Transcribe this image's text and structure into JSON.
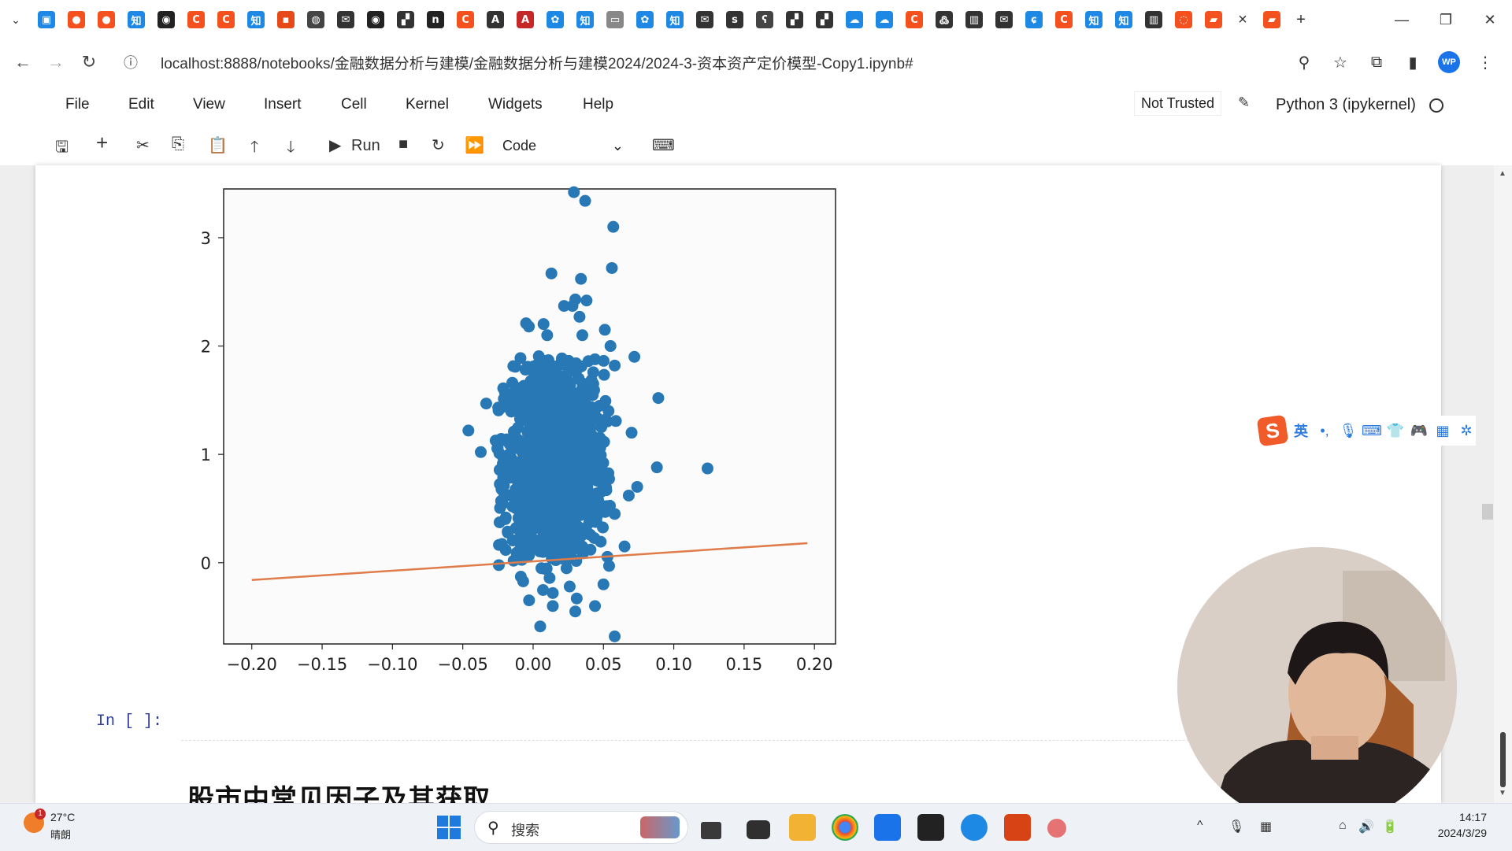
{
  "browser": {
    "tab_dropdown": "⌄",
    "tab_icons": [
      {
        "name": "bilibili-icon",
        "color": "#1e88e5",
        "glyph": "▣"
      },
      {
        "name": "tab-red-circle-icon",
        "color": "#f4511e",
        "glyph": "●"
      },
      {
        "name": "tab-red-circle2-icon",
        "color": "#f4511e",
        "glyph": "●"
      },
      {
        "name": "zhihu-icon",
        "color": "#1e88e5",
        "glyph": "知"
      },
      {
        "name": "github-icon",
        "color": "#222222",
        "glyph": "◉"
      },
      {
        "name": "csdn-icon",
        "color": "#f4511e",
        "glyph": "C"
      },
      {
        "name": "csdn-icon",
        "color": "#f4511e",
        "glyph": "C"
      },
      {
        "name": "zhihu-icon",
        "color": "#1e88e5",
        "glyph": "知"
      },
      {
        "name": "tab-small-icon",
        "color": "#e64a19",
        "glyph": "▪"
      },
      {
        "name": "globe-icon",
        "color": "#444444",
        "glyph": "◍"
      },
      {
        "name": "mail-icon",
        "color": "#333333",
        "glyph": "✉"
      },
      {
        "name": "github-icon",
        "color": "#222222",
        "glyph": "◉"
      },
      {
        "name": "tab-dark-icon",
        "color": "#333333",
        "glyph": "▞"
      },
      {
        "name": "notion-icon",
        "color": "#222222",
        "glyph": "n"
      },
      {
        "name": "csdn-icon",
        "color": "#f4511e",
        "glyph": "C"
      },
      {
        "name": "font-icon",
        "color": "#333333",
        "glyph": "A"
      },
      {
        "name": "acrobat-icon",
        "color": "#c62828",
        "glyph": "A"
      },
      {
        "name": "baidu-icon",
        "color": "#1e88e5",
        "glyph": "✿"
      },
      {
        "name": "zhihu-icon",
        "color": "#1e88e5",
        "glyph": "知"
      },
      {
        "name": "tab-gray-icon",
        "color": "#888888",
        "glyph": "▭"
      },
      {
        "name": "baidu-icon",
        "color": "#1e88e5",
        "glyph": "✿"
      },
      {
        "name": "zhihu-icon",
        "color": "#1e88e5",
        "glyph": "知"
      },
      {
        "name": "mail-icon",
        "color": "#333333",
        "glyph": "✉"
      },
      {
        "name": "sds-icon",
        "color": "#333333",
        "glyph": "s"
      },
      {
        "name": "tab-sketch-icon",
        "color": "#444444",
        "glyph": "ʕ"
      },
      {
        "name": "tab-dark-icon",
        "color": "#333333",
        "glyph": "▞"
      },
      {
        "name": "tab-dark-icon",
        "color": "#333333",
        "glyph": "▞"
      },
      {
        "name": "cloud-icon",
        "color": "#1e88e5",
        "glyph": "☁"
      },
      {
        "name": "cloud-icon",
        "color": "#1e88e5",
        "glyph": "☁"
      },
      {
        "name": "csdn-icon",
        "color": "#f4511e",
        "glyph": "C"
      },
      {
        "name": "runner-icon",
        "color": "#333333",
        "glyph": "߷"
      },
      {
        "name": "book-icon",
        "color": "#333333",
        "glyph": "▥"
      },
      {
        "name": "mail-icon",
        "color": "#333333",
        "glyph": "✉"
      },
      {
        "name": "tab-swirl-icon",
        "color": "#1e88e5",
        "glyph": "ɕ"
      },
      {
        "name": "csdn-icon",
        "color": "#f4511e",
        "glyph": "C"
      },
      {
        "name": "zhihu-icon",
        "color": "#1e88e5",
        "glyph": "知"
      },
      {
        "name": "zhihu-icon",
        "color": "#1e88e5",
        "glyph": "知"
      },
      {
        "name": "columns-icon",
        "color": "#333333",
        "glyph": "▥"
      },
      {
        "name": "loading-icon",
        "color": "#f4511e",
        "glyph": "◌"
      },
      {
        "name": "tab-active-icon",
        "color": "#f4511e",
        "glyph": "▰"
      }
    ],
    "tab_close": "×",
    "extra_tab_icon": {
      "name": "tab-orange-icon",
      "color": "#f4511e",
      "glyph": "▰"
    },
    "new_tab": "+",
    "window": {
      "minimize": "—",
      "maximize": "❐",
      "close": "✕"
    },
    "nav": {
      "back": "←",
      "forward": "→",
      "reload": "↻",
      "site_info": "ⓘ"
    },
    "url": "localhost:8888/notebooks/金融数据分析与建模/金融数据分析与建模2024/2024-3-资本资产定价模型-Copy1.ipynb#",
    "toolbar_icons": {
      "zoom": "⚲",
      "star": "☆",
      "extensions": "⧉",
      "sidebar": "▮",
      "profile": "WP",
      "menu": "⋮"
    }
  },
  "jupyter": {
    "menu": [
      "File",
      "Edit",
      "View",
      "Insert",
      "Cell",
      "Kernel",
      "Widgets",
      "Help"
    ],
    "trusted": "Not Trusted",
    "kernel": "Python 3 (ipykernel)",
    "toolbar": {
      "save": "🖫",
      "add": "+",
      "cut": "✂",
      "copy": "⎘",
      "paste": "📋",
      "up": "🡑",
      "down": "🡓",
      "run_glyph": "▶",
      "run_label": "Run",
      "stop": "■",
      "restart": "↻",
      "fast_forward": "⏩",
      "cell_type": "Code",
      "cell_type_arrow": "⌄",
      "keyboard": "⌨"
    },
    "input_prompt": "In [ ]:",
    "markdown_heading": "股市中常见因子及其获取"
  },
  "chart_data": {
    "type": "scatter",
    "title": "",
    "xlabel": "",
    "ylabel": "",
    "xlim": [
      -0.22,
      0.215
    ],
    "ylim": [
      -0.75,
      3.45
    ],
    "xticks": [
      "−0.20",
      "−0.15",
      "−0.10",
      "−0.05",
      "0.00",
      "0.05",
      "0.10",
      "0.15",
      "0.20"
    ],
    "xtick_values": [
      -0.2,
      -0.15,
      -0.1,
      -0.05,
      0.0,
      0.05,
      0.1,
      0.15,
      0.2
    ],
    "yticks": [
      "0",
      "1",
      "2",
      "3"
    ],
    "ytick_values": [
      0,
      1,
      2,
      3
    ],
    "grid": false,
    "scatter_color": "#2878b5",
    "line_color": "#e07b4a",
    "cluster": {
      "x_center": 0.015,
      "x_spread": 0.028,
      "y_center": 0.95,
      "y_spread": 0.45,
      "count": 1200
    },
    "outliers": [
      [
        0.029,
        3.42
      ],
      [
        0.037,
        3.34
      ],
      [
        0.057,
        3.1
      ],
      [
        0.056,
        2.72
      ],
      [
        0.013,
        2.67
      ],
      [
        0.034,
        2.62
      ],
      [
        0.03,
        2.43
      ],
      [
        0.038,
        2.42
      ],
      [
        0.022,
        2.37
      ],
      [
        0.028,
        2.37
      ],
      [
        0.033,
        2.27
      ],
      [
        0.051,
        2.15
      ],
      [
        -0.005,
        2.21
      ],
      [
        -0.003,
        2.18
      ],
      [
        0.01,
        2.1
      ],
      [
        0.035,
        2.1
      ],
      [
        0.055,
        2.0
      ],
      [
        0.072,
        1.9
      ],
      [
        0.058,
        1.82
      ],
      [
        0.089,
        1.52
      ],
      [
        -0.046,
        1.22
      ],
      [
        0.07,
        1.2
      ],
      [
        0.088,
        0.88
      ],
      [
        0.124,
        0.87
      ],
      [
        0.074,
        0.7
      ],
      [
        0.068,
        0.62
      ],
      [
        0.058,
        0.45
      ],
      [
        0.065,
        0.15
      ],
      [
        0.026,
        -0.22
      ],
      [
        0.014,
        -0.28
      ],
      [
        0.014,
        -0.4
      ],
      [
        0.031,
        -0.33
      ],
      [
        0.044,
        -0.4
      ],
      [
        0.05,
        -0.2
      ],
      [
        0.03,
        -0.45
      ],
      [
        0.058,
        -0.68
      ]
    ],
    "line": {
      "x": [
        -0.2,
        0.195
      ],
      "y": [
        -0.16,
        0.18
      ]
    }
  },
  "ime": {
    "logo": "S",
    "lang": "英",
    "items": [
      "•,",
      "🎙",
      "⌨",
      "👕",
      "🎮",
      "▦",
      "✲"
    ]
  },
  "taskbar": {
    "weather_temp": "27°C",
    "weather_desc": "晴朗",
    "weather_badge": "1",
    "search_placeholder": "搜索",
    "time": "14:17",
    "date": "2024/3/29",
    "tray": [
      "^",
      "🎙",
      "▦",
      "⌂",
      "🔊",
      "🔋"
    ]
  }
}
